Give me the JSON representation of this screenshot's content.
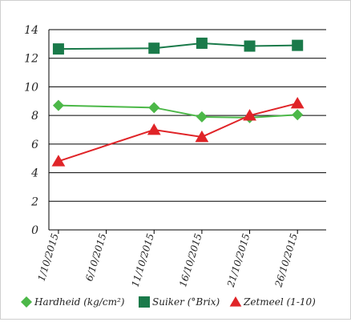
{
  "chart_data": {
    "type": "line",
    "title": "",
    "xlabel": "",
    "ylabel": "",
    "x": [
      "2015-10-01",
      "2015-10-11",
      "2015-10-16",
      "2015-10-21",
      "2015-10-26"
    ],
    "xlim": [
      "2015-09-30",
      "2015-10-29"
    ],
    "x_tick_labels": [
      "1/10/2015",
      "6/10/2015",
      "11/10/2015",
      "16/10/2015",
      "21/10/2015",
      "26/10/2015"
    ],
    "x_tick_dates": [
      "2015-10-01",
      "2015-10-06",
      "2015-10-11",
      "2015-10-16",
      "2015-10-21",
      "2015-10-26"
    ],
    "ylim": [
      0,
      14
    ],
    "y_ticks": [
      0,
      2,
      4,
      6,
      8,
      10,
      12,
      14
    ],
    "grid": "horizontal",
    "legend_position": "bottom",
    "series": [
      {
        "name": "Hardheid (kg/cm²)",
        "color": "#4cb848",
        "marker": "diamond",
        "values": [
          8.7,
          8.55,
          7.9,
          7.85,
          8.05
        ]
      },
      {
        "name": "Suiker (°Brix)",
        "color": "#1a7a4a",
        "marker": "square",
        "values": [
          12.65,
          12.7,
          13.05,
          12.85,
          12.9
        ]
      },
      {
        "name": "Zetmeel (1-10)",
        "color": "#e02428",
        "marker": "triangle",
        "values": [
          4.8,
          7.0,
          6.5,
          8.0,
          8.85
        ]
      }
    ]
  }
}
